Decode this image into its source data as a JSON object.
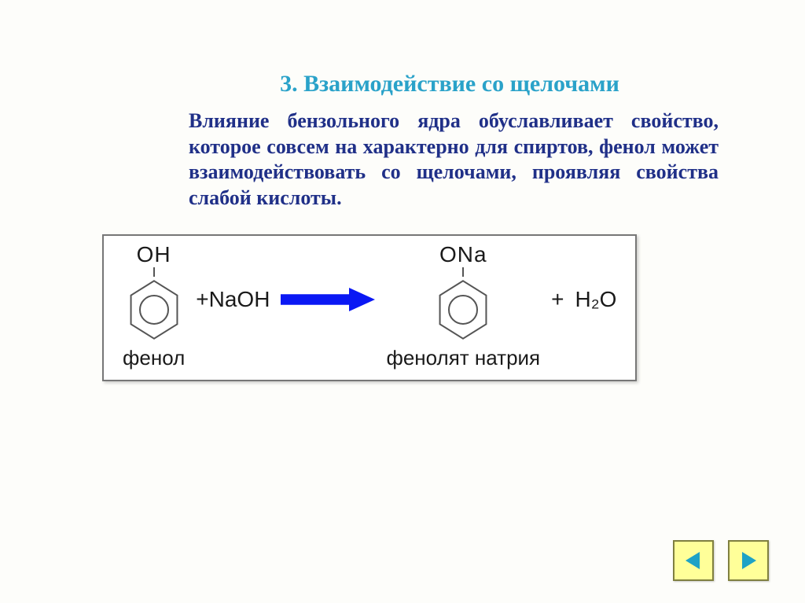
{
  "colors": {
    "background": "#fdfdfa",
    "title": "#2aa2c9",
    "body": "#203088",
    "reaction_box_border": "#777777",
    "reaction_text": "#1a1a1a",
    "ring_stroke": "#555555",
    "arrow_fill": "#0a18f4",
    "nav_bg": "#ffff99",
    "nav_border": "#808040",
    "nav_tri": "#1ea2c6"
  },
  "title": "3. Взаимодействие со щелочами",
  "body_text": "Влияние бензольного ядра обуславливает свойство, которое совсем на характерно для спиртов, фенол может взаимодействовать со щелочами, проявляя свойства слабой кислоты.",
  "reaction": {
    "reactant": {
      "top_group": "OH",
      "label": "фенол"
    },
    "reagent": "+NaOH",
    "product": {
      "top_group": "ONa",
      "label": "фенолят  натрия"
    },
    "plus": "+",
    "byproduct": "H₂O"
  },
  "ring": {
    "hex_stroke_width": 2,
    "circle_stroke_width": 2,
    "circle_r": 18
  },
  "arrow": {
    "width": 120,
    "height": 30
  },
  "nav": {
    "prev": "nav-prev",
    "next": "nav-next"
  }
}
